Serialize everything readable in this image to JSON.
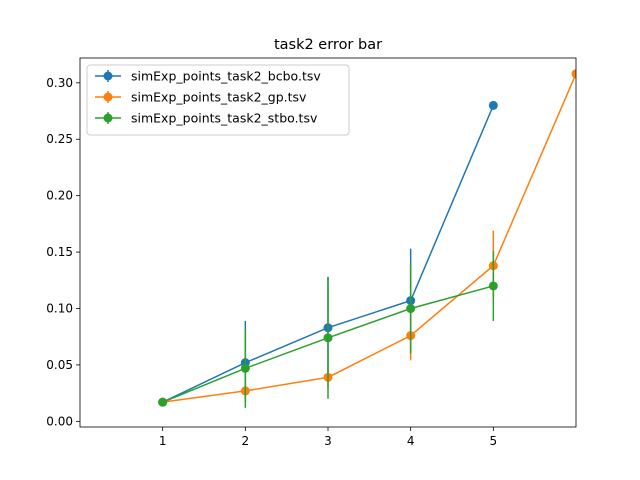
{
  "chart_data": {
    "type": "line",
    "title": "task2 error bar",
    "xlabel": "",
    "ylabel": "",
    "xlim": [
      0.0,
      6.0
    ],
    "ylim": [
      -0.005,
      0.322
    ],
    "xticks": [
      1,
      2,
      3,
      4,
      5
    ],
    "yticks": [
      0.0,
      0.05,
      0.1,
      0.15,
      0.2,
      0.25,
      0.3
    ],
    "ytick_labels": [
      "0.00",
      "0.05",
      "0.10",
      "0.15",
      "0.20",
      "0.25",
      "0.30"
    ],
    "grid": false,
    "legend": "top-left",
    "series": [
      {
        "name": "simExp_points_task2_bcbo.tsv",
        "color": "#1f77b4",
        "x": [
          1,
          2,
          3,
          4,
          5
        ],
        "y": [
          0.017,
          0.052,
          0.083,
          0.107,
          0.28
        ],
        "err_low": [
          0.017,
          0.017,
          0.04,
          0.062,
          0.28
        ],
        "err_high": [
          0.017,
          0.089,
          0.128,
          0.153,
          0.28
        ]
      },
      {
        "name": "simExp_points_task2_gp.tsv",
        "color": "#ff7f0e",
        "x": [
          1,
          2,
          3,
          4,
          5,
          6
        ],
        "y": [
          0.017,
          0.027,
          0.039,
          0.076,
          0.138,
          0.308
        ],
        "err_low": [
          0.017,
          0.027,
          0.03,
          0.054,
          0.108,
          0.308
        ],
        "err_high": [
          0.017,
          0.027,
          0.048,
          0.098,
          0.169,
          0.308
        ]
      },
      {
        "name": "simExp_points_task2_stbo.tsv",
        "color": "#2ca02c",
        "x": [
          1,
          2,
          3,
          4,
          5
        ],
        "y": [
          0.017,
          0.047,
          0.074,
          0.1,
          0.12
        ],
        "err_low": [
          0.017,
          0.012,
          0.02,
          0.06,
          0.089
        ],
        "err_high": [
          0.017,
          0.082,
          0.128,
          0.14,
          0.151
        ]
      }
    ]
  }
}
